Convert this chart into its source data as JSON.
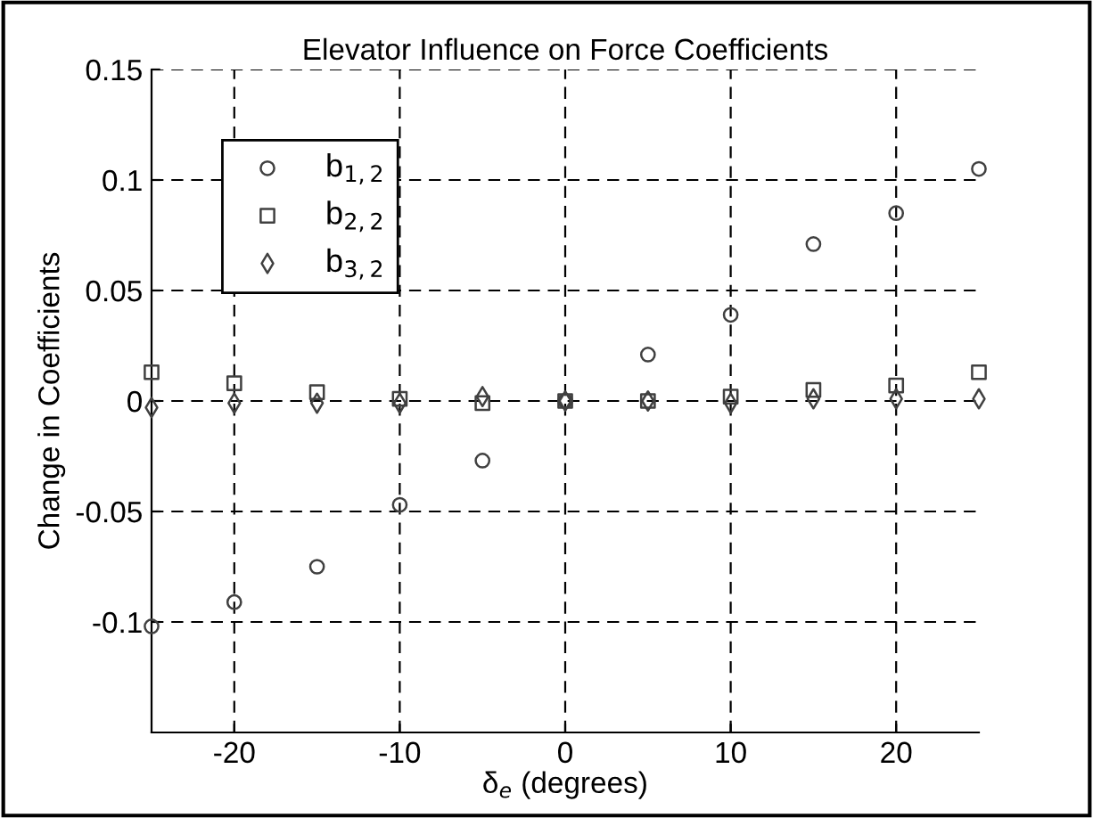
{
  "chart_data": {
    "type": "scatter",
    "title": "Elevator Influence on Force Coefficients",
    "xlabel": "δ$_{e}$ (degrees)",
    "ylabel": "Change in Coefficients",
    "x": [
      -25,
      -20,
      -15,
      -10,
      -5,
      0,
      5,
      10,
      15,
      20,
      25
    ],
    "series": [
      {
        "name": "b$_{1,2}$",
        "color": "#404040",
        "marker": "circle",
        "values": [
          -0.102,
          -0.091,
          -0.075,
          -0.047,
          -0.027,
          0,
          0.021,
          0.039,
          0.071,
          0.085,
          0.105
        ]
      },
      {
        "name": "b$_{2,2}$",
        "color": "#404040",
        "marker": "square",
        "values": [
          0.013,
          0.008,
          0.004,
          0.001,
          -0.001,
          0,
          0,
          0.002,
          0.005,
          0.007,
          0.013
        ]
      },
      {
        "name": "b$_{3,2}$",
        "color": "#404040",
        "marker": "diamond",
        "values": [
          -0.003,
          -0.001,
          -0.001,
          -0.001,
          0.002,
          0,
          0,
          -0.001,
          0.001,
          0.001,
          0.001
        ]
      }
    ],
    "xlim": [
      -25,
      25
    ],
    "ylim": [
      -0.15,
      0.15
    ],
    "xticks": [
      -20,
      -10,
      0,
      10,
      20
    ],
    "yticks": [
      -0.1,
      -0.05,
      0,
      0.05,
      0.1,
      0.15
    ],
    "grid": true,
    "legend": "top left"
  }
}
